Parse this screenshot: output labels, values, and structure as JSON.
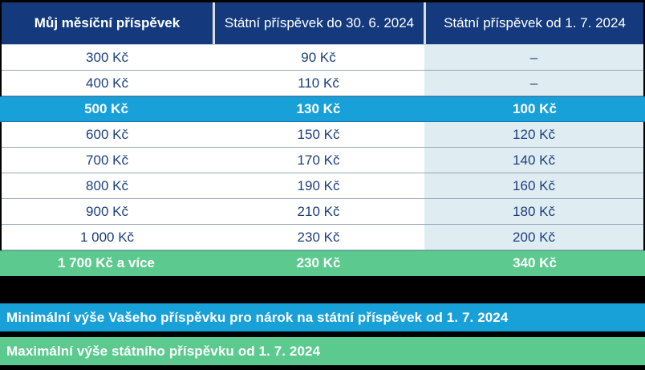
{
  "chart_data": {
    "type": "table",
    "columns": [
      "Můj měsíční příspěvek",
      "Státní příspěvek do 30. 6. 2024",
      "Státní příspěvek od 1. 7. 2024"
    ],
    "rows": [
      {
        "cells": [
          "300 Kč",
          "90 Kč",
          "–"
        ],
        "highlight": "none"
      },
      {
        "cells": [
          "400 Kč",
          "110 Kč",
          "–"
        ],
        "highlight": "none"
      },
      {
        "cells": [
          "500 Kč",
          "130 Kč",
          "100 Kč"
        ],
        "highlight": "blue"
      },
      {
        "cells": [
          "600 Kč",
          "150 Kč",
          "120 Kč"
        ],
        "highlight": "none"
      },
      {
        "cells": [
          "700 Kč",
          "170 Kč",
          "140 Kč"
        ],
        "highlight": "none"
      },
      {
        "cells": [
          "800 Kč",
          "190 Kč",
          "160 Kč"
        ],
        "highlight": "none"
      },
      {
        "cells": [
          "900 Kč",
          "210 Kč",
          "180 Kč"
        ],
        "highlight": "none"
      },
      {
        "cells": [
          "1 000 Kč",
          "230 Kč",
          "200 Kč"
        ],
        "highlight": "none"
      },
      {
        "cells": [
          "1 700 Kč a více",
          "230 Kč",
          "340 Kč"
        ],
        "highlight": "green"
      }
    ]
  },
  "legend": {
    "min_label": "Minimální výše Vašeho příspěvku pro nárok na státní příspěvek od 1. 7. 2024",
    "max_label": "Maximální výše státního příspěvku od 1. 7. 2024"
  },
  "colors": {
    "background": "#000000",
    "header_navy": "#143a7d",
    "text_navy": "#1c3f7d",
    "highlight_blue": "#18a0d9",
    "highlight_green": "#5cc98e",
    "light_blue_column": "#dfecf2",
    "row_separator": "#93a5ba",
    "text_white": "#ffffff"
  }
}
